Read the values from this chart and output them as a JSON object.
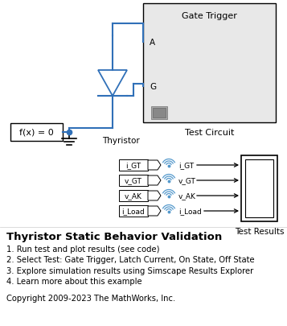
{
  "bg_color": "#ffffff",
  "title_text": "Thyristor Static Behavior Validation",
  "items": [
    "1. Run test and plot results (see code)",
    "2. Select Test: Gate Trigger, Latch Current, On State, Off State",
    "3. Explore simulation results using Simscape Results Explorer",
    "4. Learn more about this example"
  ],
  "copyright": "Copyright 2009-2023 The MathWorks, Inc.",
  "blue": "#3070b8",
  "black": "#000000",
  "light_gray": "#e8e8e8",
  "signal_blue": "#5599cc"
}
